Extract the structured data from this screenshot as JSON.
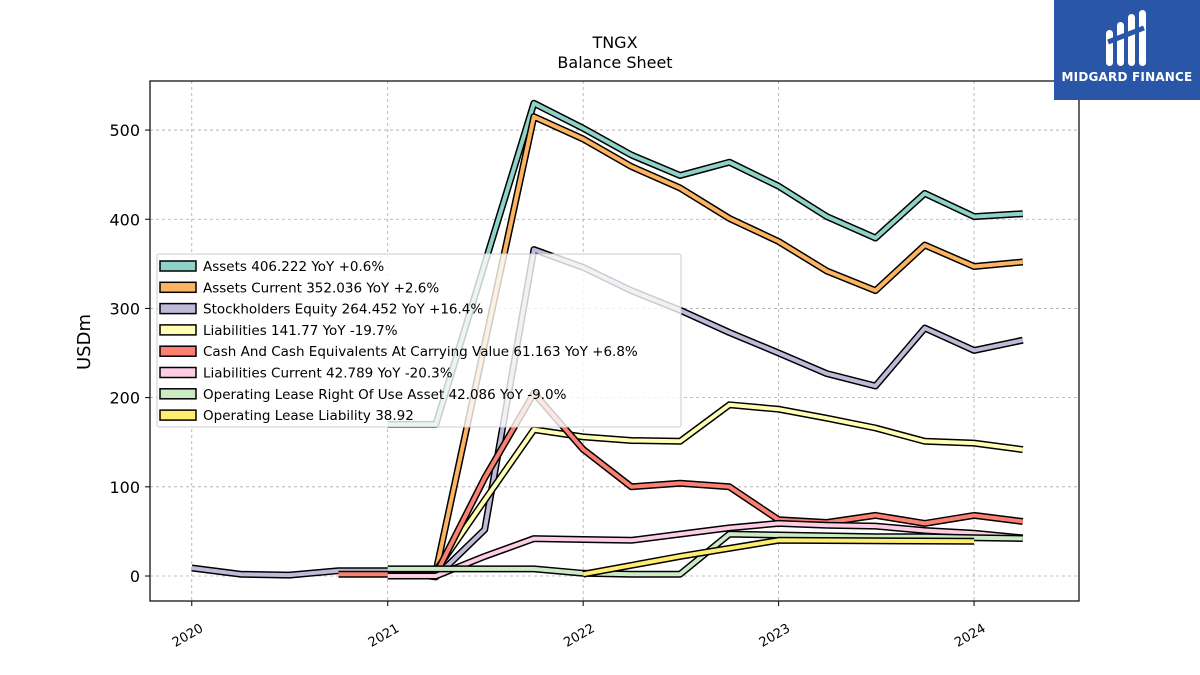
{
  "brand": {
    "name": "MIDGARD FINANCE",
    "color": "#2a56a8"
  },
  "chart_data": {
    "type": "line",
    "title": "TNGX",
    "subtitle": "Balance  Sheet",
    "ylabel": "USDm",
    "xlabel": "",
    "xlim": [
      "2019-10-15",
      "2024-07-15"
    ],
    "ylim": [
      -28,
      555
    ],
    "yticks": [
      0,
      100,
      200,
      300,
      400,
      500
    ],
    "xticks": [
      {
        "date": "2020-01-01",
        "label": "2020"
      },
      {
        "date": "2021-01-01",
        "label": "2021"
      },
      {
        "date": "2022-01-01",
        "label": "2022"
      },
      {
        "date": "2023-01-01",
        "label": "2023"
      },
      {
        "date": "2024-01-01",
        "label": "2024"
      }
    ],
    "grid": true,
    "legend_placement": "center-left",
    "series": [
      {
        "name": "Assets  406.222 YoY +0.6%",
        "color": "#8dd3c7",
        "points": [
          [
            "2021-01-01",
            170
          ],
          [
            "2021-04-01",
            170
          ],
          [
            "2021-07-01",
            350
          ],
          [
            "2021-10-01",
            530
          ],
          [
            "2022-01-01",
            502
          ],
          [
            "2022-04-01",
            472
          ],
          [
            "2022-07-01",
            449
          ],
          [
            "2022-10-01",
            464
          ],
          [
            "2023-01-01",
            437
          ],
          [
            "2023-04-01",
            403
          ],
          [
            "2023-07-01",
            379
          ],
          [
            "2023-10-01",
            429
          ],
          [
            "2024-01-01",
            403
          ],
          [
            "2024-04-01",
            406.222
          ]
        ]
      },
      {
        "name": "Assets Current  352.036 YoY +2.6%",
        "color": "#fdb462",
        "points": [
          [
            "2021-04-01",
            5
          ],
          [
            "2021-07-01",
            260
          ],
          [
            "2021-10-01",
            515
          ],
          [
            "2022-01-01",
            490
          ],
          [
            "2022-04-01",
            459
          ],
          [
            "2022-07-01",
            435
          ],
          [
            "2022-10-01",
            401
          ],
          [
            "2023-01-01",
            375
          ],
          [
            "2023-04-01",
            342
          ],
          [
            "2023-07-01",
            320
          ],
          [
            "2023-10-01",
            371
          ],
          [
            "2024-01-01",
            347
          ],
          [
            "2024-04-01",
            352.036
          ]
        ]
      },
      {
        "name": "Stockholders Equity  264.452 YoY +16.4%",
        "color": "#bebada",
        "points": [
          [
            "2020-01-01",
            9
          ],
          [
            "2020-04-01",
            2
          ],
          [
            "2020-07-01",
            1
          ],
          [
            "2020-10-01",
            6
          ],
          [
            "2021-01-01",
            6
          ],
          [
            "2021-04-01",
            -1
          ],
          [
            "2021-07-01",
            52
          ],
          [
            "2021-10-01",
            366
          ],
          [
            "2022-01-01",
            346
          ],
          [
            "2022-04-01",
            320
          ],
          [
            "2022-07-01",
            298
          ],
          [
            "2022-10-01",
            273
          ],
          [
            "2023-01-01",
            250
          ],
          [
            "2023-04-01",
            227
          ],
          [
            "2023-07-01",
            213
          ],
          [
            "2023-10-01",
            278
          ],
          [
            "2024-01-01",
            253
          ],
          [
            "2024-04-01",
            264.452
          ]
        ]
      },
      {
        "name": "Liabilities  141.77 YoY -19.7%",
        "color": "#ffffb3",
        "points": [
          [
            "2021-04-01",
            6
          ],
          [
            "2021-07-01",
            85
          ],
          [
            "2021-10-01",
            164
          ],
          [
            "2022-01-01",
            156
          ],
          [
            "2022-04-01",
            152
          ],
          [
            "2022-07-01",
            151
          ],
          [
            "2022-10-01",
            192
          ],
          [
            "2023-01-01",
            187
          ],
          [
            "2023-04-01",
            177
          ],
          [
            "2023-07-01",
            166
          ],
          [
            "2023-10-01",
            151
          ],
          [
            "2024-01-01",
            149
          ],
          [
            "2024-04-01",
            141.77
          ]
        ]
      },
      {
        "name": "Cash And Cash Equivalents At Carrying Value  61.163 YoY +6.8%",
        "color": "#fb8072",
        "points": [
          [
            "2020-10-01",
            2
          ],
          [
            "2021-01-01",
            2
          ],
          [
            "2021-04-01",
            2
          ],
          [
            "2021-07-01",
            110
          ],
          [
            "2021-10-01",
            205
          ],
          [
            "2022-01-01",
            142
          ],
          [
            "2022-04-01",
            100
          ],
          [
            "2022-07-01",
            104
          ],
          [
            "2022-10-01",
            100
          ],
          [
            "2023-01-01",
            63
          ],
          [
            "2023-04-01",
            60
          ],
          [
            "2023-07-01",
            68
          ],
          [
            "2023-10-01",
            59
          ],
          [
            "2024-01-01",
            68
          ],
          [
            "2024-04-01",
            61.163
          ]
        ]
      },
      {
        "name": "Liabilities Current  42.789 YoY -20.3%",
        "color": "#fccde5",
        "points": [
          [
            "2021-01-01",
            0
          ],
          [
            "2021-04-01",
            0
          ],
          [
            "2021-07-01",
            22
          ],
          [
            "2021-10-01",
            42
          ],
          [
            "2022-01-01",
            41
          ],
          [
            "2022-04-01",
            40
          ],
          [
            "2022-07-01",
            47
          ],
          [
            "2022-10-01",
            54
          ],
          [
            "2023-01-01",
            59
          ],
          [
            "2023-04-01",
            57
          ],
          [
            "2023-07-01",
            56
          ],
          [
            "2023-10-01",
            51
          ],
          [
            "2024-01-01",
            48
          ],
          [
            "2024-04-01",
            42.789
          ]
        ]
      },
      {
        "name": "Operating Lease Right Of Use Asset  42.086 YoY -9.0%",
        "color": "#ccebc5",
        "points": [
          [
            "2021-01-01",
            8
          ],
          [
            "2021-04-01",
            8
          ],
          [
            "2021-07-01",
            8
          ],
          [
            "2021-10-01",
            8
          ],
          [
            "2022-01-01",
            3
          ],
          [
            "2022-04-01",
            2
          ],
          [
            "2022-07-01",
            2
          ],
          [
            "2022-10-01",
            47
          ],
          [
            "2023-01-01",
            46
          ],
          [
            "2023-04-01",
            45
          ],
          [
            "2023-07-01",
            44
          ],
          [
            "2023-10-01",
            44
          ],
          [
            "2024-01-01",
            43
          ],
          [
            "2024-04-01",
            42.086
          ]
        ]
      },
      {
        "name": "Operating Lease Liability  38.92",
        "color": "#ffed6f",
        "points": [
          [
            "2022-01-01",
            2
          ],
          [
            "2022-07-01",
            22
          ],
          [
            "2023-01-01",
            40
          ],
          [
            "2024-01-01",
            38.92
          ]
        ]
      }
    ]
  }
}
